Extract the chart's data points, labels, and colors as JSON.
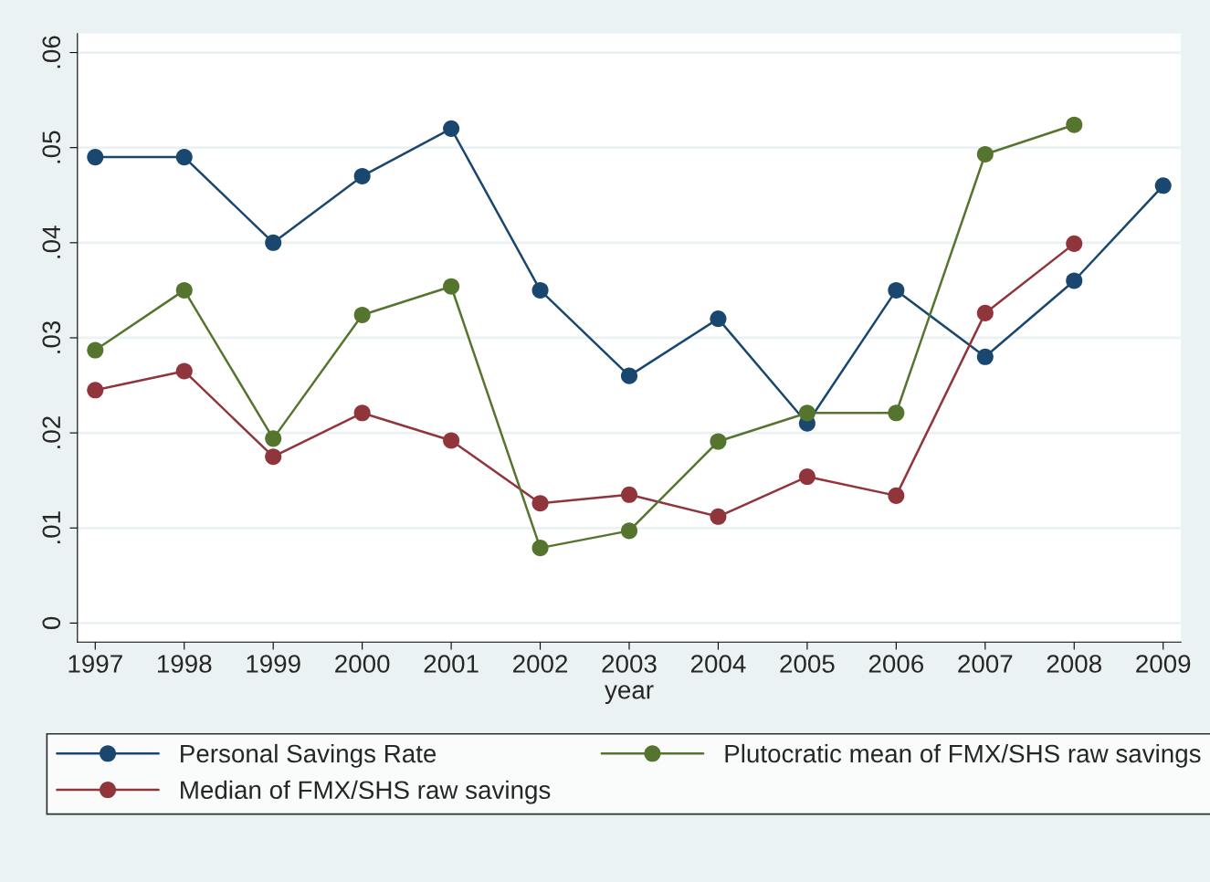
{
  "chart_data": {
    "type": "line",
    "xlabel": "year",
    "x": [
      1997,
      1998,
      1999,
      2000,
      2001,
      2002,
      2003,
      2004,
      2005,
      2006,
      2007,
      2008,
      2009
    ],
    "series": [
      {
        "name": "Personal Savings Rate",
        "color": "#1a476f",
        "values": [
          0.049,
          0.049,
          0.04,
          0.047,
          0.052,
          0.035,
          0.026,
          0.032,
          0.021,
          0.035,
          0.028,
          0.036,
          0.046
        ]
      },
      {
        "name": "Median of FMX/SHS raw savings",
        "color": "#90353b",
        "values": [
          0.0245,
          0.0265,
          0.0175,
          0.0221,
          0.0192,
          0.0126,
          0.0135,
          0.0112,
          0.0154,
          0.0134,
          0.0326,
          0.0399,
          null
        ]
      },
      {
        "name": "Plutocratic mean of FMX/SHS raw savings",
        "color": "#55752f",
        "values": [
          0.0287,
          0.035,
          0.0194,
          0.0324,
          0.0354,
          0.0079,
          0.0097,
          0.0191,
          0.0221,
          0.0221,
          0.0493,
          0.0524,
          null
        ]
      }
    ],
    "xlim": [
      1996.8,
      2009.2
    ],
    "xticks": [
      1997,
      1998,
      1999,
      2000,
      2001,
      2002,
      2003,
      2004,
      2005,
      2006,
      2007,
      2008,
      2009
    ],
    "ylim": [
      -0.002,
      0.062
    ],
    "yticks": [
      0,
      {
        "value": 0.01,
        "label": ".01"
      },
      {
        "value": 0.02,
        "label": ".02"
      },
      {
        "value": 0.03,
        "label": ".03"
      },
      {
        "value": 0.04,
        "label": ".04"
      },
      {
        "value": 0.05,
        "label": ".05"
      },
      {
        "value": 0.06,
        "label": ".06"
      }
    ],
    "grid": "y",
    "legend": "bottom",
    "marker": "circle",
    "line_style": "solid"
  }
}
